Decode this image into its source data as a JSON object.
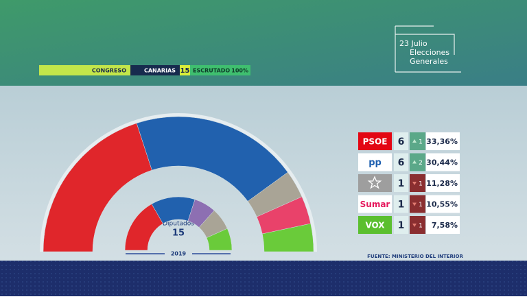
{
  "header": {
    "chamber": "CONGRESO",
    "region": "CANARIAS",
    "status": "ESCRUTADO",
    "counted": "100%"
  },
  "logo": {
    "line1": "23 Julio",
    "line2": "Elecciones",
    "line3": "Generales"
  },
  "chart_data": {
    "type": "hemicycle",
    "center_label": "Diputados",
    "total": 15,
    "categories": [
      "PSOE",
      "pp",
      null,
      "Sumar",
      "VOX"
    ],
    "colors": [
      "#e0262b",
      "#2161ae",
      "#a9a496",
      "#e9426a",
      "#6acb3a"
    ],
    "values": [
      6,
      6,
      1,
      1,
      1
    ],
    "previous": {
      "label": "2019",
      "values": [
        5,
        4,
        2,
        2,
        2
      ],
      "colors": [
        "#e0262b",
        "#2161ae",
        "#8d6fb2",
        "#a9a496",
        "#6acb3a"
      ]
    },
    "changes": [
      1,
      2,
      1,
      1,
      1
    ],
    "change_direction": [
      "up",
      "up",
      "down",
      "down",
      "down"
    ],
    "percent": [
      33.36,
      30.44,
      11.28,
      10.55,
      7.58
    ],
    "percent_labels": [
      "33,36%",
      "30,44%",
      "11,28%",
      "10,55%",
      "7,58%"
    ]
  },
  "source": "FUENTE: MINISTERIO DEL INTERIOR"
}
